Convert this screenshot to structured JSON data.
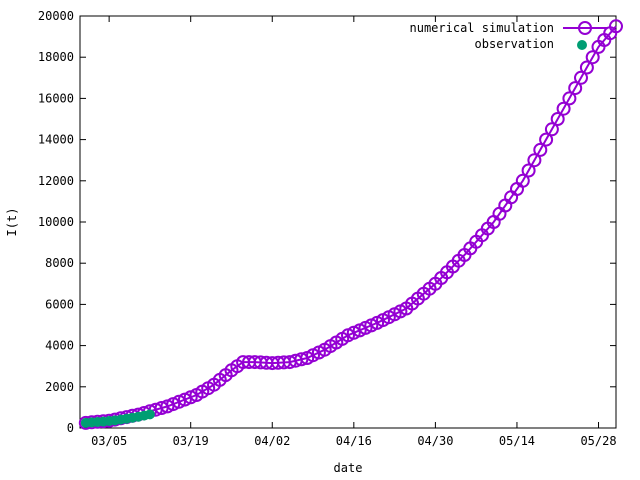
{
  "chart_data": {
    "type": "line",
    "xlabel": "date",
    "ylabel": "I(t)",
    "xlim": [
      "2020-02-29",
      "2020-05-31"
    ],
    "ylim": [
      0,
      20000
    ],
    "x_ticks": [
      "2020-03-05",
      "2020-03-19",
      "2020-04-02",
      "2020-04-16",
      "2020-04-30",
      "2020-05-14",
      "2020-05-28"
    ],
    "x_tick_labels": [
      "03/05",
      "03/19",
      "04/02",
      "04/16",
      "04/30",
      "05/14",
      "05/28"
    ],
    "y_ticks": [
      0,
      2000,
      4000,
      6000,
      8000,
      10000,
      12000,
      14000,
      16000,
      18000,
      20000
    ],
    "y_tick_labels": [
      "0",
      "2000",
      "4000",
      "6000",
      "8000",
      "10000",
      "12000",
      "14000",
      "16000",
      "18000",
      "20000"
    ],
    "legend_position": "top-right",
    "grid": false,
    "series": [
      {
        "name": "numerical simulation",
        "style": "line-with-open-circles",
        "color": "#9400d3",
        "points": [
          [
            "2020-03-01",
            250
          ],
          [
            "2020-03-05",
            350
          ],
          [
            "2020-03-10",
            650
          ],
          [
            "2020-03-15",
            1050
          ],
          [
            "2020-03-20",
            1600
          ],
          [
            "2020-03-23",
            2100
          ],
          [
            "2020-03-26",
            2800
          ],
          [
            "2020-03-28",
            3200
          ],
          [
            "2020-03-30",
            3200
          ],
          [
            "2020-04-02",
            3150
          ],
          [
            "2020-04-05",
            3200
          ],
          [
            "2020-04-08",
            3400
          ],
          [
            "2020-04-11",
            3800
          ],
          [
            "2020-04-15",
            4500
          ],
          [
            "2020-04-20",
            5100
          ],
          [
            "2020-04-25",
            5800
          ],
          [
            "2020-04-30",
            7000
          ],
          [
            "2020-05-05",
            8400
          ],
          [
            "2020-05-10",
            10000
          ],
          [
            "2020-05-15",
            12000
          ],
          [
            "2020-05-20",
            14500
          ],
          [
            "2020-05-25",
            17000
          ],
          [
            "2020-05-28",
            18500
          ],
          [
            "2020-05-31",
            19500
          ]
        ]
      },
      {
        "name": "observation",
        "style": "filled-circles",
        "color": "#009e73",
        "points": [
          [
            "2020-03-01",
            250
          ],
          [
            "2020-03-02",
            270
          ],
          [
            "2020-03-03",
            290
          ],
          [
            "2020-03-04",
            310
          ],
          [
            "2020-03-05",
            340
          ],
          [
            "2020-03-06",
            370
          ],
          [
            "2020-03-07",
            410
          ],
          [
            "2020-03-08",
            450
          ],
          [
            "2020-03-09",
            500
          ],
          [
            "2020-03-10",
            550
          ],
          [
            "2020-03-11",
            600
          ],
          [
            "2020-03-12",
            660
          ]
        ]
      }
    ]
  }
}
